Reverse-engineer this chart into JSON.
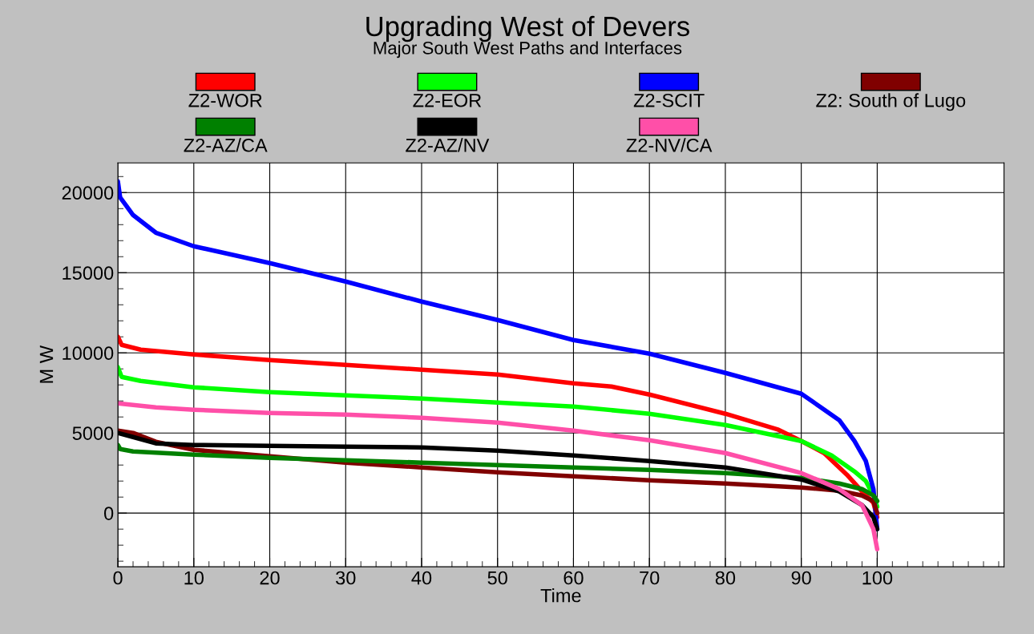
{
  "chart_data": {
    "type": "line",
    "title": "Upgrading West of Devers",
    "subtitle": "Major South West Paths and Interfaces",
    "xlabel": "Time",
    "ylabel": "M W",
    "xlim": [
      0,
      116.7
    ],
    "xticks": [
      0,
      10,
      20,
      30,
      40,
      50,
      60,
      70,
      80,
      90,
      100
    ],
    "ylim": [
      -3350,
      21850
    ],
    "yticks": [
      0,
      5000,
      10000,
      15000,
      20000
    ],
    "grid": true,
    "legend": "top",
    "marker": "none",
    "line_style": "solid",
    "series": [
      {
        "name": "Z2-WOR",
        "color": "#ff0000",
        "x": [
          0,
          0.5,
          3,
          10,
          20,
          30,
          40,
          50,
          60,
          65,
          70,
          80,
          87,
          90,
          93,
          96,
          98,
          99.5,
          100
        ],
        "values": [
          11000,
          10500,
          10200,
          9900,
          9550,
          9250,
          8950,
          8650,
          8100,
          7900,
          7400,
          6200,
          5200,
          4500,
          3750,
          2400,
          1350,
          650,
          -250
        ]
      },
      {
        "name": "Z2-EOR",
        "color": "#00ff00",
        "x": [
          0,
          0.5,
          3,
          10,
          20,
          30,
          40,
          50,
          60,
          70,
          80,
          90,
          94,
          97,
          98.5,
          99.5,
          100
        ],
        "values": [
          9100,
          8500,
          8250,
          7850,
          7550,
          7350,
          7150,
          6900,
          6650,
          6200,
          5500,
          4500,
          3600,
          2600,
          2000,
          1100,
          400
        ]
      },
      {
        "name": "Z2-SCIT",
        "color": "#0000ff",
        "x": [
          0,
          0.3,
          2,
          5,
          10,
          20,
          30,
          40,
          50,
          60,
          70,
          80,
          90,
          95,
          97,
          98.5,
          99.5,
          100
        ],
        "values": [
          20700,
          19700,
          18600,
          17500,
          16650,
          15600,
          14450,
          13200,
          12050,
          10800,
          9950,
          8750,
          7450,
          5800,
          4500,
          3250,
          1500,
          -1000
        ]
      },
      {
        "name": "Z2: South of Lugo",
        "color": "#800000",
        "x": [
          0,
          2,
          5,
          10,
          20,
          30,
          40,
          50,
          60,
          70,
          80,
          90,
          95,
          98,
          99.5,
          100
        ],
        "values": [
          5150,
          5000,
          4450,
          3950,
          3550,
          3150,
          2850,
          2550,
          2300,
          2050,
          1850,
          1600,
          1400,
          1100,
          750,
          0
        ]
      },
      {
        "name": "Z2-AZ/CA",
        "color": "#008000",
        "x": [
          0,
          0.3,
          2,
          10,
          20,
          30,
          40,
          50,
          60,
          70,
          80,
          90,
          95,
          98,
          99.5,
          100
        ],
        "values": [
          4250,
          4000,
          3850,
          3650,
          3450,
          3300,
          3150,
          3000,
          2850,
          2700,
          2500,
          2200,
          1850,
          1500,
          1100,
          750
        ]
      },
      {
        "name": "Z2-AZ/NV",
        "color": "#000000",
        "x": [
          0,
          2,
          5,
          10,
          20,
          30,
          40,
          50,
          60,
          70,
          80,
          90,
          95,
          98,
          99.5,
          100
        ],
        "values": [
          5000,
          4750,
          4350,
          4250,
          4200,
          4150,
          4100,
          3900,
          3600,
          3250,
          2850,
          2100,
          1350,
          500,
          -250,
          -1000
        ]
      },
      {
        "name": "Z2-NV/CA",
        "color": "#ff4fa8",
        "x": [
          0,
          5,
          10,
          20,
          30,
          40,
          50,
          60,
          70,
          80,
          90,
          95,
          98,
          99.5,
          100
        ],
        "values": [
          6850,
          6600,
          6450,
          6250,
          6150,
          5950,
          5650,
          5150,
          4550,
          3750,
          2500,
          1500,
          500,
          -1000,
          -2250
        ]
      }
    ]
  }
}
